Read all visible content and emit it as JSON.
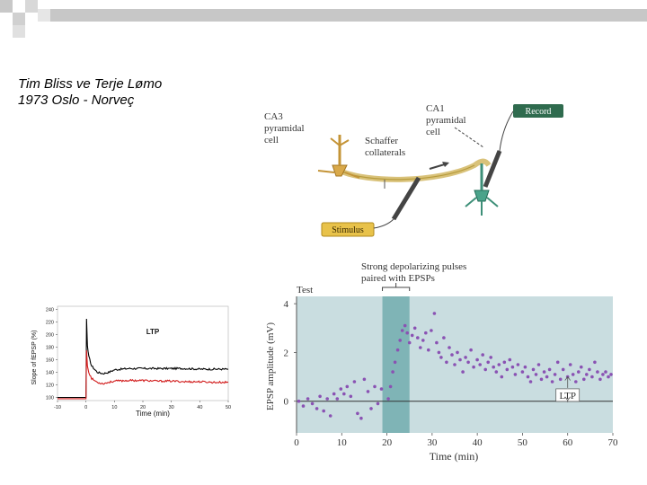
{
  "slide": {
    "title_line1": "Tim Bliss ve Terje Lømo",
    "title_line2": "1973 Oslo - Norveç"
  },
  "diagram": {
    "ca3_label": [
      "CA3",
      "pyramidal",
      "cell"
    ],
    "ca1_label": [
      "CA1",
      "pyramidal",
      "cell"
    ],
    "schaffer_label": [
      "Schaffer",
      "collaterals"
    ],
    "record_label": "Record",
    "stimulus_label": "Stimulus"
  },
  "chart_left": {
    "type": "line",
    "ylabel": "Slope of fEPSP (%)",
    "xlabel": "Time (min)",
    "annotation": "LTP",
    "x_ticks": [
      "-10",
      "0",
      "10",
      "20",
      "30",
      "40",
      "50"
    ],
    "y_ticks": [
      "100",
      "120",
      "140",
      "160",
      "180",
      "200",
      "220",
      "240"
    ],
    "xlim": [
      -10,
      50
    ],
    "ylim": [
      95,
      245
    ],
    "colors": {
      "black_series": "#000000",
      "red_series": "#d11a1a"
    }
  },
  "chart_right": {
    "type": "scatter",
    "header": [
      "Strong depolarizing pulses",
      "paired with EPSPs"
    ],
    "test_label": "Test",
    "ltp_label": "LTP",
    "ylabel": "EPSP amplitude (mV)",
    "xlabel": "Time (min)",
    "x_ticks": [
      "0",
      "10",
      "20",
      "30",
      "40",
      "50",
      "60",
      "70"
    ],
    "y_ticks": [
      "0",
      "2",
      "4"
    ],
    "xlim": [
      0,
      70
    ],
    "ylim": [
      -1.3,
      4.3
    ],
    "pulse_window": [
      19,
      25
    ],
    "colors": {
      "bg": "#c9dde0",
      "band": "#7fb4b6",
      "dot": "#8a52b3"
    }
  },
  "chart_data": [
    {
      "type": "line",
      "title": "LTP",
      "xlabel": "Time (min)",
      "ylabel": "Slope of fEPSP (%)",
      "xlim": [
        -10,
        50
      ],
      "ylim": [
        95,
        245
      ],
      "series": [
        {
          "name": "black",
          "x": [
            -10,
            -5,
            -1,
            0,
            0.2,
            0.5,
            1,
            2,
            4,
            6,
            8,
            10,
            15,
            20,
            25,
            30,
            35,
            40,
            45,
            50
          ],
          "y": [
            100,
            100,
            100,
            100,
            225,
            182,
            165,
            150,
            140,
            138,
            140,
            144,
            146,
            146,
            146,
            146,
            146,
            145,
            145,
            145
          ]
        },
        {
          "name": "red",
          "x": [
            -10,
            -5,
            -1,
            0,
            0.2,
            0.5,
            1,
            2,
            4,
            6,
            8,
            10,
            15,
            20,
            25,
            30,
            35,
            40,
            45,
            50
          ],
          "y": [
            98,
            98,
            98,
            98,
            175,
            150,
            140,
            130,
            124,
            122,
            124,
            126,
            127,
            127,
            126,
            126,
            125,
            125,
            124,
            124
          ]
        }
      ]
    },
    {
      "type": "scatter",
      "title": "Strong depolarizing pulses paired with EPSPs",
      "xlabel": "Time (min)",
      "ylabel": "EPSP amplitude (mV)",
      "xlim": [
        0,
        70
      ],
      "ylim": [
        -1.3,
        4.3
      ],
      "series": [
        {
          "name": "EPSP",
          "points": [
            [
              0.5,
              0
            ],
            [
              1.5,
              -0.2
            ],
            [
              2.5,
              0.1
            ],
            [
              3.5,
              -0.1
            ],
            [
              4.5,
              -0.3
            ],
            [
              5.2,
              0.2
            ],
            [
              6,
              -0.4
            ],
            [
              6.8,
              0.1
            ],
            [
              7.5,
              -0.6
            ],
            [
              8.3,
              0.3
            ],
            [
              9,
              0.1
            ],
            [
              9.8,
              0.5
            ],
            [
              10.5,
              0.3
            ],
            [
              11.2,
              0.6
            ],
            [
              12,
              0.2
            ],
            [
              12.8,
              0.8
            ],
            [
              13.5,
              -0.5
            ],
            [
              14.3,
              -0.7
            ],
            [
              15,
              0.9
            ],
            [
              15.8,
              0.4
            ],
            [
              16.5,
              -0.3
            ],
            [
              17.3,
              0.6
            ],
            [
              18,
              -0.1
            ],
            [
              18.8,
              0.5
            ],
            [
              20.3,
              0.1
            ],
            [
              20.8,
              0.6
            ],
            [
              21.3,
              1.2
            ],
            [
              21.8,
              1.6
            ],
            [
              22.4,
              2.1
            ],
            [
              22.9,
              2.5
            ],
            [
              23.4,
              2.9
            ],
            [
              24,
              3.1
            ],
            [
              24.5,
              2.8
            ],
            [
              25,
              2.4
            ],
            [
              25.6,
              2.7
            ],
            [
              26.2,
              3.0
            ],
            [
              26.8,
              2.6
            ],
            [
              27.4,
              2.2
            ],
            [
              28,
              2.5
            ],
            [
              28.6,
              2.8
            ],
            [
              29.2,
              2.1
            ],
            [
              29.8,
              2.9
            ],
            [
              30.5,
              3.6
            ],
            [
              31,
              2.4
            ],
            [
              31.5,
              2.0
            ],
            [
              32,
              1.8
            ],
            [
              32.6,
              2.6
            ],
            [
              33.2,
              1.6
            ],
            [
              33.8,
              2.2
            ],
            [
              34.4,
              1.9
            ],
            [
              35,
              1.5
            ],
            [
              35.6,
              2.0
            ],
            [
              36.2,
              1.7
            ],
            [
              36.8,
              1.2
            ],
            [
              37.4,
              1.8
            ],
            [
              38,
              1.6
            ],
            [
              38.6,
              2.1
            ],
            [
              39.2,
              1.4
            ],
            [
              40,
              1.7
            ],
            [
              40.6,
              1.5
            ],
            [
              41.2,
              1.9
            ],
            [
              41.8,
              1.3
            ],
            [
              42.4,
              1.6
            ],
            [
              43,
              1.8
            ],
            [
              43.6,
              1.4
            ],
            [
              44.2,
              1.2
            ],
            [
              44.8,
              1.5
            ],
            [
              45.4,
              1.0
            ],
            [
              46,
              1.6
            ],
            [
              46.6,
              1.3
            ],
            [
              47.2,
              1.7
            ],
            [
              47.8,
              1.4
            ],
            [
              48.4,
              1.1
            ],
            [
              49,
              1.5
            ],
            [
              50,
              1.2
            ],
            [
              50.6,
              1.4
            ],
            [
              51.2,
              1.0
            ],
            [
              51.8,
              0.8
            ],
            [
              52.4,
              1.3
            ],
            [
              53,
              1.1
            ],
            [
              53.6,
              1.5
            ],
            [
              54.2,
              0.9
            ],
            [
              54.8,
              1.2
            ],
            [
              55.4,
              1.0
            ],
            [
              56,
              1.3
            ],
            [
              56.6,
              0.8
            ],
            [
              57.2,
              1.1
            ],
            [
              57.8,
              1.6
            ],
            [
              58.4,
              0.9
            ],
            [
              59,
              1.3
            ],
            [
              60,
              1.0
            ],
            [
              60.6,
              1.5
            ],
            [
              61.2,
              1.1
            ],
            [
              61.8,
              0.8
            ],
            [
              62.4,
              1.2
            ],
            [
              63,
              1.4
            ],
            [
              63.6,
              0.9
            ],
            [
              64.2,
              1.1
            ],
            [
              64.8,
              1.3
            ],
            [
              65.4,
              1.0
            ],
            [
              66,
              1.6
            ],
            [
              66.6,
              1.2
            ],
            [
              67.2,
              0.9
            ],
            [
              67.8,
              1.1
            ],
            [
              68.4,
              1.2
            ],
            [
              69,
              1.0
            ],
            [
              69.6,
              1.1
            ]
          ]
        }
      ]
    }
  ]
}
